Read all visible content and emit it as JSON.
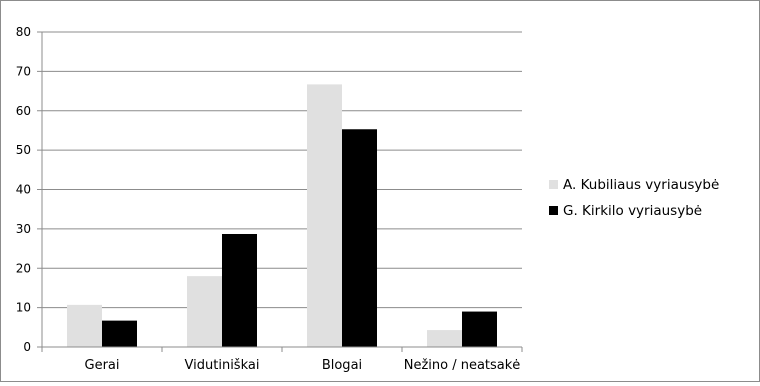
{
  "chart_data": {
    "type": "bar",
    "title": "",
    "xlabel": "",
    "ylabel": "",
    "ylim": [
      0,
      80
    ],
    "y_ticks": [
      0,
      10,
      20,
      30,
      40,
      50,
      60,
      70,
      80
    ],
    "grid": true,
    "legend_position": "right",
    "categories": [
      "Gerai",
      "Vidutiniškai",
      "Blogai",
      "Nežino / neatsakė"
    ],
    "series": [
      {
        "name": "A. Kubiliaus vyriausybė",
        "color": "#e0e0e0",
        "values": [
          10.7,
          18.0,
          66.7,
          4.3
        ]
      },
      {
        "name": "G. Kirkilo vyriausybė",
        "color": "#000000",
        "values": [
          6.7,
          28.7,
          55.3,
          9.0
        ]
      }
    ]
  }
}
